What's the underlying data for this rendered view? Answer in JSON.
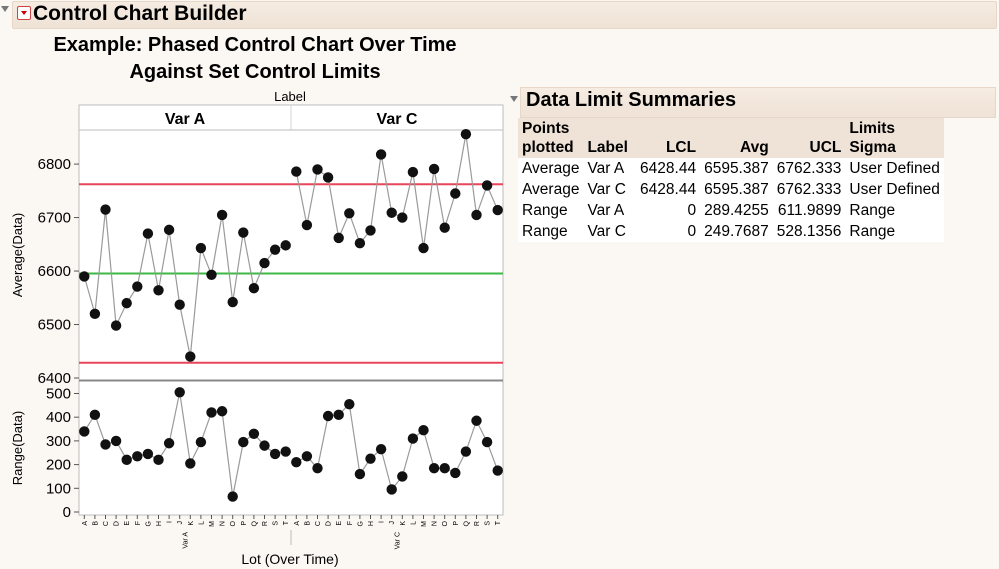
{
  "app": {
    "title": "Control Chart Builder"
  },
  "chart_title_line1": "Example: Phased Control Chart Over Time",
  "chart_title_line2": "Against Set Control Limits",
  "chart_data": {
    "type": "line",
    "phase_axis_label": "Label",
    "phases": [
      "Var A",
      "Var C"
    ],
    "x_labels": [
      "A",
      "B",
      "C",
      "D",
      "E",
      "F",
      "G",
      "H",
      "I",
      "J",
      "K",
      "L",
      "M",
      "N",
      "O",
      "P",
      "Q",
      "R",
      "S",
      "T"
    ],
    "xlabel": "Lot (Over Time)",
    "average": {
      "ylabel": "Average(Data)",
      "ylim": [
        6400,
        6860
      ],
      "ticks": [
        6400,
        6500,
        6600,
        6700,
        6800
      ],
      "lcl": 6428.44,
      "avg": 6595.387,
      "ucl": 6762.333,
      "series": [
        {
          "phase": "Var A",
          "values": [
            6590,
            6520,
            6715,
            6498,
            6540,
            6571,
            6670,
            6564,
            6677,
            6537,
            6440,
            6643,
            6593,
            6705,
            6542,
            6672,
            6568,
            6615,
            6640,
            6648
          ]
        },
        {
          "phase": "Var C",
          "values": [
            6786,
            6686,
            6790,
            6775,
            6662,
            6708,
            6652,
            6676,
            6818,
            6709,
            6700,
            6785,
            6643,
            6791,
            6681,
            6745,
            6856,
            6705,
            6760,
            6714
          ]
        }
      ]
    },
    "range": {
      "ylabel": "Range(Data)",
      "ylim": [
        0,
        540
      ],
      "ticks": [
        0,
        100,
        200,
        300,
        400,
        500
      ],
      "series": [
        {
          "phase": "Var A",
          "values": [
            340,
            410,
            285,
            300,
            220,
            235,
            245,
            220,
            290,
            505,
            205,
            295,
            420,
            425,
            65,
            295,
            330,
            280,
            245,
            255
          ]
        },
        {
          "phase": "Var C",
          "values": [
            210,
            235,
            185,
            405,
            410,
            455,
            160,
            225,
            265,
            95,
            150,
            310,
            345,
            185,
            185,
            165,
            255,
            385,
            295,
            175
          ]
        }
      ]
    }
  },
  "summary": {
    "title": "Data Limit Summaries",
    "headers": {
      "points_line1": "Points",
      "points_line2": "plotted",
      "label": "Label",
      "lcl": "LCL",
      "avg": "Avg",
      "ucl": "UCL",
      "limits_line1": "Limits",
      "limits_line2": "Sigma"
    },
    "rows": [
      {
        "points": "Average",
        "label": "Var A",
        "lcl": "6428.44",
        "avg": "6595.387",
        "ucl": "6762.333",
        "sigma": "User Defined"
      },
      {
        "points": "Average",
        "label": "Var C",
        "lcl": "6428.44",
        "avg": "6595.387",
        "ucl": "6762.333",
        "sigma": "User Defined"
      },
      {
        "points": "Range",
        "label": "Var A",
        "lcl": "0",
        "avg": "289.4255",
        "ucl": "611.9899",
        "sigma": "Range"
      },
      {
        "points": "Range",
        "label": "Var C",
        "lcl": "0",
        "avg": "249.7687",
        "ucl": "528.1356",
        "sigma": "Range"
      }
    ]
  },
  "colors": {
    "ucl_lcl": "#e8455b",
    "avg": "#3cb944",
    "line": "#9a9a9a",
    "marker": "#111111"
  }
}
